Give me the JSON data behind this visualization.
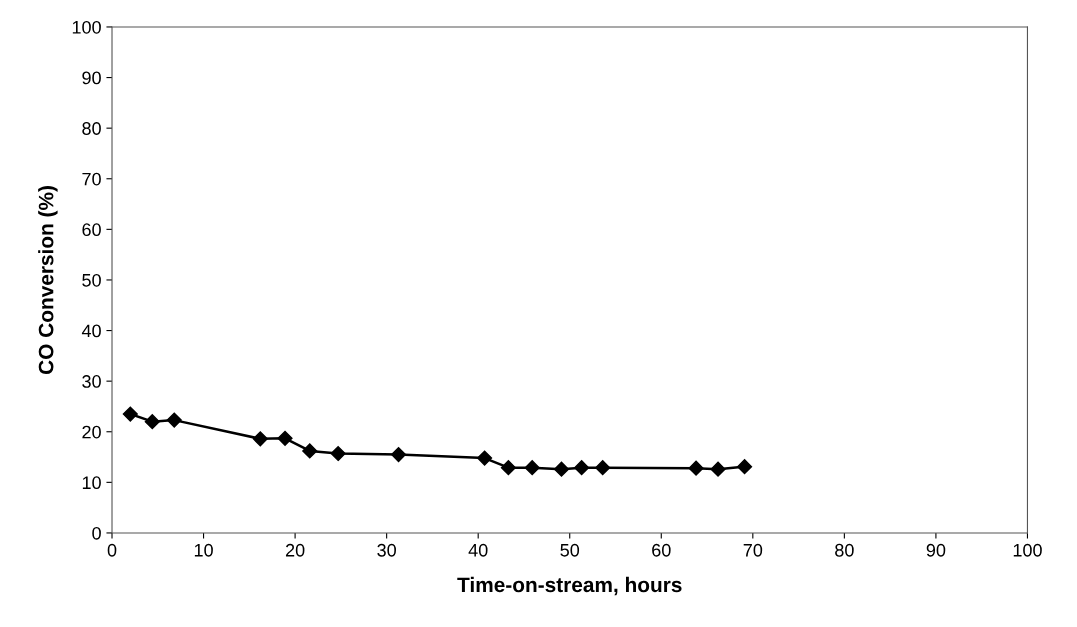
{
  "chart_data": {
    "type": "line",
    "xlabel": "Time-on-stream, hours",
    "ylabel": "CO Conversion (%)",
    "x": [
      2.0,
      4.4,
      6.8,
      16.2,
      18.9,
      21.6,
      24.7,
      31.3,
      40.7,
      43.3,
      45.9,
      49.1,
      51.3,
      53.6,
      63.8,
      66.2,
      69.1
    ],
    "series": [
      {
        "color": "#000000",
        "values": [
          23.5,
          22.0,
          22.3,
          18.6,
          18.7,
          16.2,
          15.7,
          15.5,
          14.8,
          12.9,
          12.9,
          12.6,
          12.9,
          12.9,
          12.8,
          12.6,
          13.1
        ]
      }
    ],
    "xlim": [
      0,
      100
    ],
    "xticks": [
      0,
      10,
      20,
      30,
      40,
      50,
      60,
      70,
      80,
      90,
      100
    ],
    "ylim": [
      0,
      100
    ],
    "yticks": [
      0,
      10,
      20,
      30,
      40,
      50,
      60,
      70,
      80,
      90,
      100
    ],
    "marker": "diamond",
    "line_style": "solid",
    "grid": false,
    "legend": false
  }
}
